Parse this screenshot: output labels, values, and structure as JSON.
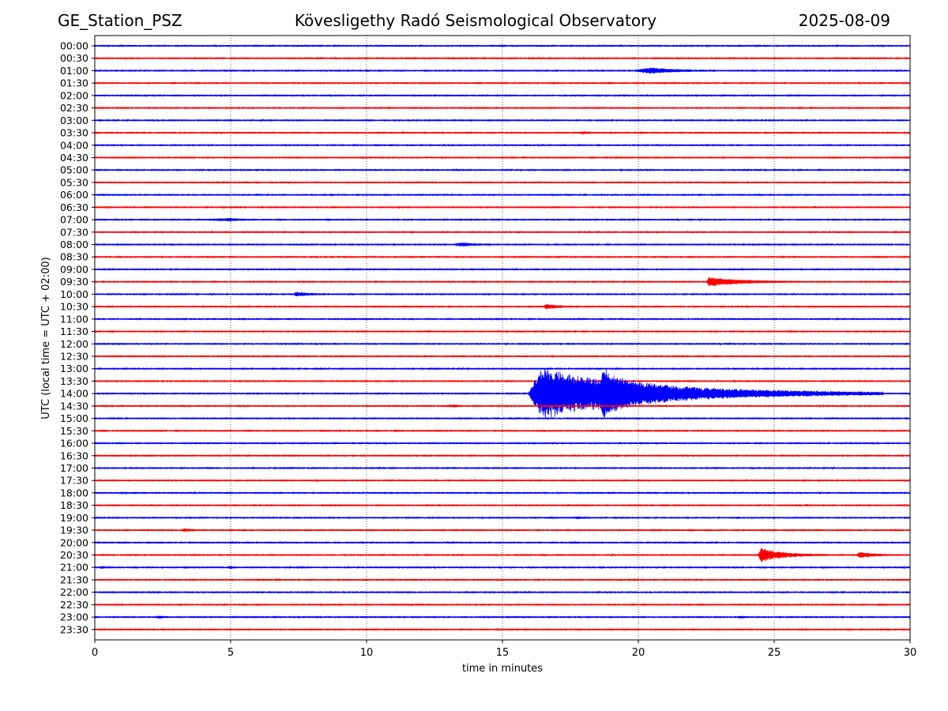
{
  "header": {
    "station": "GE_Station_PSZ",
    "observatory": "Kövesligethy Radó Seismological Observatory",
    "date": "2025-08-09"
  },
  "chart_data": {
    "type": "line",
    "title": "Kövesligethy Radó Seismological Observatory",
    "xlabel": "time in minutes",
    "ylabel": "UTC (local time = UTC + 02:00)",
    "xlim": [
      0,
      30
    ],
    "x_ticks": [
      "0",
      "5",
      "10",
      "15",
      "20",
      "25",
      "30"
    ],
    "grid": "vertical dotted at each x tick",
    "trace_colors": [
      "#0000ff",
      "#ff0000"
    ],
    "traces": [
      {
        "label": "00:00",
        "events": []
      },
      {
        "label": "00:30",
        "events": []
      },
      {
        "label": "01:00",
        "events": [
          {
            "start": 19.8,
            "peak": 20.5,
            "end": 23.0,
            "amp": 0.45
          }
        ]
      },
      {
        "label": "01:30",
        "events": []
      },
      {
        "label": "02:00",
        "events": []
      },
      {
        "label": "02:30",
        "events": []
      },
      {
        "label": "03:00",
        "events": []
      },
      {
        "label": "03:30",
        "events": [
          {
            "start": 17.8,
            "peak": 18.0,
            "end": 18.6,
            "amp": 0.15
          },
          {
            "start": 20.0,
            "peak": 20.1,
            "end": 20.4,
            "amp": 0.1
          }
        ]
      },
      {
        "label": "04:00",
        "events": []
      },
      {
        "label": "04:30",
        "events": []
      },
      {
        "label": "05:00",
        "events": []
      },
      {
        "label": "05:30",
        "events": []
      },
      {
        "label": "06:00",
        "events": []
      },
      {
        "label": "06:30",
        "events": []
      },
      {
        "label": "07:00",
        "events": [
          {
            "start": 4.0,
            "peak": 5.0,
            "end": 6.5,
            "amp": 0.18
          },
          {
            "start": 8.4,
            "peak": 8.6,
            "end": 9.0,
            "amp": 0.12
          }
        ]
      },
      {
        "label": "07:30",
        "events": []
      },
      {
        "label": "08:00",
        "events": [
          {
            "start": 13.2,
            "peak": 13.5,
            "end": 15.0,
            "amp": 0.25
          }
        ]
      },
      {
        "label": "08:30",
        "events": []
      },
      {
        "label": "09:00",
        "events": []
      },
      {
        "label": "09:30",
        "events": [
          {
            "start": 22.5,
            "peak": 22.6,
            "end": 26.0,
            "amp": 0.7
          }
        ]
      },
      {
        "label": "10:00",
        "events": [
          {
            "start": 7.3,
            "peak": 7.4,
            "end": 9.0,
            "amp": 0.3
          }
        ]
      },
      {
        "label": "10:30",
        "events": [
          {
            "start": 16.5,
            "peak": 16.6,
            "end": 18.0,
            "amp": 0.35
          }
        ]
      },
      {
        "label": "11:00",
        "events": []
      },
      {
        "label": "11:30",
        "events": []
      },
      {
        "label": "12:00",
        "events": []
      },
      {
        "label": "12:30",
        "events": []
      },
      {
        "label": "13:00",
        "events": []
      },
      {
        "label": "13:30",
        "events": []
      },
      {
        "label": "14:00",
        "events": [
          {
            "start": 15.95,
            "peak": 16.45,
            "end": 29.0,
            "amp": 4.2
          },
          {
            "start": 18.6,
            "peak": 18.7,
            "end": 21.0,
            "amp": 2.0
          }
        ]
      },
      {
        "label": "14:30",
        "events": [
          {
            "start": 12.8,
            "peak": 13.3,
            "end": 13.6,
            "amp": 0.15
          }
        ]
      },
      {
        "label": "15:00",
        "events": []
      },
      {
        "label": "15:30",
        "events": []
      },
      {
        "label": "16:00",
        "events": []
      },
      {
        "label": "16:30",
        "events": []
      },
      {
        "label": "17:00",
        "events": []
      },
      {
        "label": "17:30",
        "events": []
      },
      {
        "label": "18:00",
        "events": []
      },
      {
        "label": "18:30",
        "events": []
      },
      {
        "label": "19:00",
        "events": [
          {
            "start": 17.5,
            "peak": 17.8,
            "end": 18.5,
            "amp": 0.12
          }
        ]
      },
      {
        "label": "19:30",
        "events": [
          {
            "start": 3.2,
            "peak": 3.3,
            "end": 4.0,
            "amp": 0.22
          }
        ]
      },
      {
        "label": "20:00",
        "events": []
      },
      {
        "label": "20:30",
        "events": [
          {
            "start": 24.4,
            "peak": 24.5,
            "end": 27.0,
            "amp": 1.1
          },
          {
            "start": 28.0,
            "peak": 28.2,
            "end": 29.5,
            "amp": 0.45
          }
        ]
      },
      {
        "label": "21:00",
        "events": [
          {
            "start": 0.1,
            "peak": 0.3,
            "end": 1.2,
            "amp": 0.12
          },
          {
            "start": 4.8,
            "peak": 5.0,
            "end": 5.4,
            "amp": 0.15
          }
        ]
      },
      {
        "label": "21:30",
        "events": []
      },
      {
        "label": "22:00",
        "events": []
      },
      {
        "label": "22:30",
        "events": []
      },
      {
        "label": "23:00",
        "events": [
          {
            "start": 2.2,
            "peak": 2.4,
            "end": 3.0,
            "amp": 0.15
          },
          {
            "start": 23.6,
            "peak": 23.8,
            "end": 24.4,
            "amp": 0.12
          }
        ]
      },
      {
        "label": "23:30",
        "events": []
      }
    ]
  }
}
